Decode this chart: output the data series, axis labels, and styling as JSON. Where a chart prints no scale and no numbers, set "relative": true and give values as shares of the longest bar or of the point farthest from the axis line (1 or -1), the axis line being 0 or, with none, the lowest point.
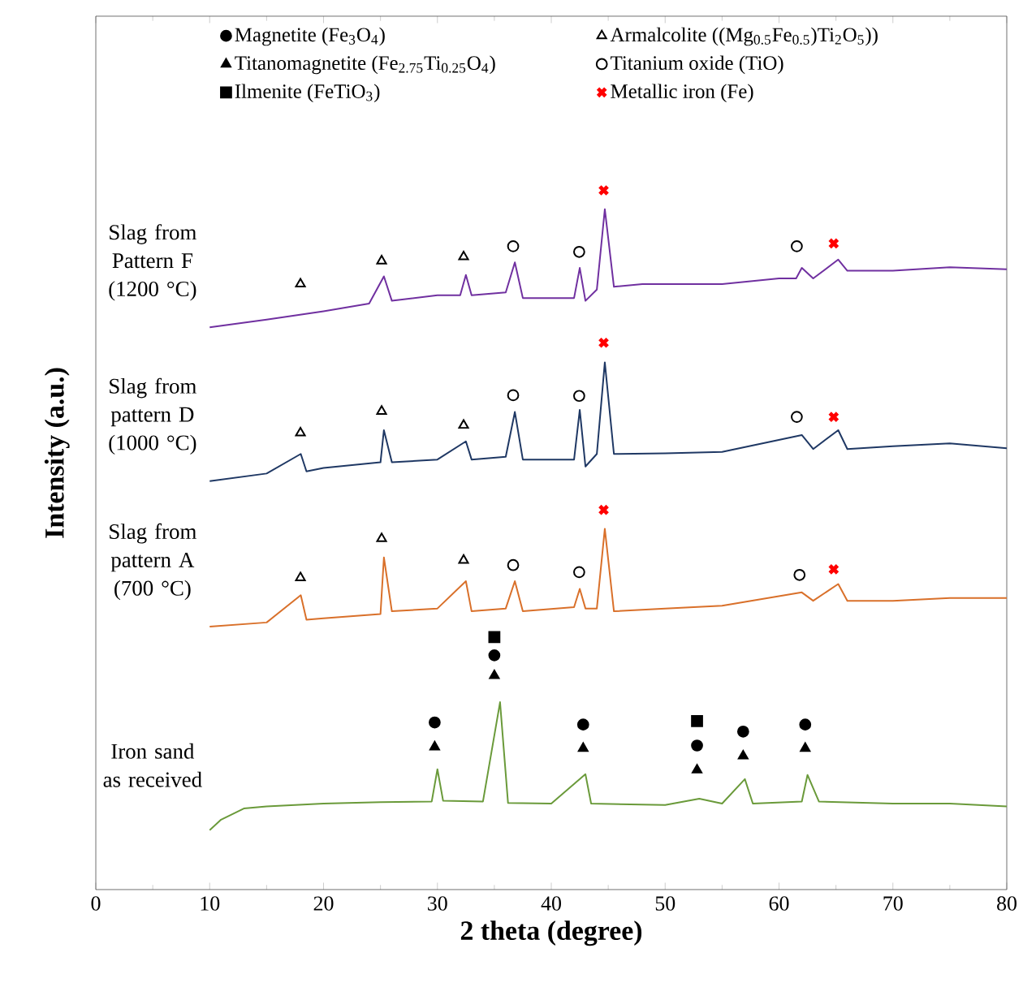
{
  "chart_data": {
    "type": "line",
    "relative": true,
    "xlabel": "2 theta (degree)",
    "ylabel": "Intensity (a.u.)",
    "xlim": [
      0,
      80
    ],
    "xticks": [
      0,
      10,
      20,
      30,
      40,
      50,
      60,
      70,
      80
    ],
    "legend": "top",
    "grid": false,
    "series": [
      {
        "name": "Slag from Pattern F (1200 °C)",
        "color": "#7030a0",
        "x": [
          10,
          15,
          20,
          24,
          25.3,
          26,
          30,
          32,
          32.5,
          33,
          36,
          36.8,
          37.5,
          40,
          42,
          42.5,
          43,
          44,
          44.7,
          45.5,
          48,
          55,
          60,
          61.5,
          62,
          63,
          65.2,
          66,
          70,
          75,
          80
        ],
        "values": [
          0.804,
          0.815,
          0.827,
          0.838,
          0.877,
          0.842,
          0.85,
          0.85,
          0.879,
          0.85,
          0.854,
          0.897,
          0.846,
          0.846,
          0.846,
          0.889,
          0.842,
          0.858,
          0.973,
          0.862,
          0.866,
          0.866,
          0.874,
          0.874,
          0.889,
          0.874,
          0.901,
          0.885,
          0.885,
          0.89,
          0.887
        ]
      },
      {
        "name": "Slag from pattern D (1000 °C)",
        "color": "#1f3864",
        "x": [
          10,
          15,
          18,
          18.5,
          20,
          25,
          25.3,
          26,
          30,
          32.5,
          33,
          36,
          36.8,
          37.5,
          42,
          42.5,
          43,
          44,
          44.7,
          45.5,
          50,
          55,
          62,
          63,
          65.2,
          66,
          70,
          75,
          80
        ],
        "values": [
          0.584,
          0.595,
          0.623,
          0.598,
          0.603,
          0.611,
          0.657,
          0.611,
          0.615,
          0.641,
          0.615,
          0.619,
          0.683,
          0.615,
          0.615,
          0.686,
          0.605,
          0.623,
          0.754,
          0.623,
          0.624,
          0.626,
          0.65,
          0.63,
          0.657,
          0.63,
          0.634,
          0.638,
          0.631
        ]
      },
      {
        "name": "Slag from pattern A (700 °C)",
        "color": "#d9702a",
        "x": [
          10,
          15,
          18,
          18.5,
          20,
          25,
          25.3,
          26,
          30,
          32.5,
          33,
          36,
          36.8,
          37.5,
          42,
          42.5,
          43,
          44,
          44.7,
          45.5,
          50,
          55,
          62,
          63,
          65.2,
          66,
          70,
          75,
          80
        ],
        "values": [
          0.376,
          0.382,
          0.421,
          0.386,
          0.388,
          0.394,
          0.475,
          0.398,
          0.402,
          0.441,
          0.398,
          0.402,
          0.441,
          0.398,
          0.404,
          0.43,
          0.402,
          0.402,
          0.516,
          0.398,
          0.402,
          0.406,
          0.425,
          0.413,
          0.437,
          0.413,
          0.413,
          0.417,
          0.417
        ]
      },
      {
        "name": "Iron sand as received",
        "color": "#6a9a3a",
        "x": [
          10,
          11,
          13,
          15,
          20,
          25,
          29.5,
          30,
          30.5,
          34,
          35.5,
          36.2,
          40,
          43,
          43.5,
          50,
          53,
          55,
          57,
          57.7,
          62,
          62.5,
          63.5,
          70,
          75,
          80
        ],
        "values": [
          0.085,
          0.1,
          0.116,
          0.119,
          0.123,
          0.125,
          0.126,
          0.172,
          0.127,
          0.126,
          0.268,
          0.124,
          0.123,
          0.165,
          0.123,
          0.121,
          0.13,
          0.123,
          0.158,
          0.123,
          0.126,
          0.164,
          0.126,
          0.123,
          0.123,
          0.119
        ]
      },
      {
        "name": "Magnetite (Fe$_{3}$O$_{4}$)",
        "type": "scatter",
        "marker": "circle",
        "color": "#000000",
        "x": [
          29.76,
          35.0,
          42.8,
          52.8,
          56.85,
          62.3
        ],
        "values": [
          0.239,
          0.335,
          0.236,
          0.206,
          0.226,
          0.236
        ]
      },
      {
        "name": "Titanomagnetite (Fe$_{2.75}$Ti$_{0.25}$O$_{4}$)",
        "type": "scatter",
        "marker": "triangle",
        "color": "#000000",
        "x": [
          29.76,
          35.0,
          42.8,
          52.8,
          56.85,
          62.3
        ],
        "values": [
          0.204,
          0.306,
          0.202,
          0.171,
          0.191,
          0.202
        ]
      },
      {
        "name": "Ilmenite (FeTiO$_{3}$)",
        "type": "scatter",
        "marker": "square",
        "color": "#000000",
        "x": [
          35.0,
          52.8
        ],
        "values": [
          0.361,
          0.241
        ]
      },
      {
        "name": "Armalcolite ((Mg$_{0.5}$Fe$_{0.5}$)Ti$_{2}$O$_{5}$))",
        "type": "scatter",
        "marker": "triangle",
        "color": "#ffffff",
        "x": [
          17.97,
          25.1,
          32.3,
          17.97,
          25.1,
          32.3,
          17.97,
          25.1,
          32.3
        ],
        "values": [
          0.866,
          0.899,
          0.905,
          0.653,
          0.684,
          0.664,
          0.446,
          0.502,
          0.471
        ]
      },
      {
        "name": "Titanium oxide (TiO)",
        "type": "scatter",
        "marker": "circle",
        "color": "#ffffff",
        "x": [
          36.65,
          42.45,
          61.56,
          36.65,
          42.45,
          61.56,
          36.65,
          42.45,
          61.8
        ],
        "values": [
          0.92,
          0.912,
          0.92,
          0.707,
          0.706,
          0.676,
          0.464,
          0.454,
          0.45
        ]
      },
      {
        "name": "Metallic iron (Fe)",
        "type": "scatter",
        "marker": "cross",
        "color": "#ff0000",
        "x": [
          44.6,
          64.8,
          44.6,
          64.8,
          44.6,
          64.8
        ],
        "values": [
          1,
          0.924,
          0.782,
          0.676,
          0.543,
          0.458
        ]
      }
    ]
  }
}
